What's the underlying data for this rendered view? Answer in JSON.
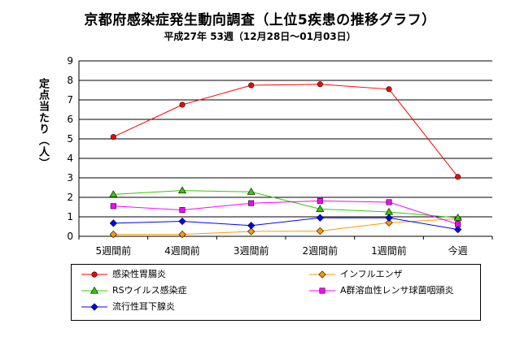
{
  "chart_data": {
    "type": "line",
    "title": "京都府感染症発生動向調査（上位5疾患の推移グラフ）",
    "subtitle": "平成27年 53週（12月28日～01月03日）",
    "xlabel": "",
    "ylabel": "定点当たり（人）",
    "ylim": [
      0,
      9
    ],
    "yticks": [
      0,
      1,
      2,
      3,
      4,
      5,
      6,
      7,
      8,
      9
    ],
    "grid": true,
    "legend_position": "bottom",
    "categories": [
      "5週間前",
      "4週間前",
      "3週間前",
      "2週間前",
      "1週間前",
      "今週"
    ],
    "series": [
      {
        "name": "感染性胃腸炎",
        "color": "#ff0000",
        "marker": "circle",
        "values": [
          5.1,
          6.75,
          7.75,
          7.8,
          7.55,
          3.05
        ]
      },
      {
        "name": "インフルエンザ",
        "color": "#ff9900",
        "marker": "diamond",
        "values": [
          0.1,
          0.1,
          0.25,
          0.27,
          0.7,
          0.9
        ]
      },
      {
        "name": "RSウイルス感染症",
        "color": "#33cc00",
        "marker": "triangle",
        "values": [
          2.15,
          2.35,
          2.28,
          1.4,
          1.25,
          0.95
        ]
      },
      {
        "name": "A群溶血性レンサ球菌咽頭炎",
        "color": "#ff00ff",
        "marker": "square",
        "values": [
          1.55,
          1.35,
          1.7,
          1.82,
          1.75,
          0.62
        ]
      },
      {
        "name": "流行性耳下腺炎",
        "color": "#0000ff",
        "marker": "diamond",
        "values": [
          0.67,
          0.77,
          0.55,
          0.95,
          0.95,
          0.35
        ]
      }
    ]
  }
}
